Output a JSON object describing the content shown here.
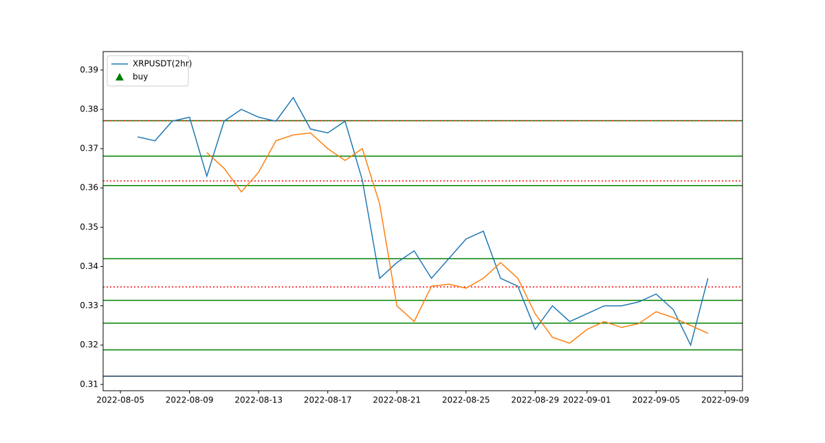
{
  "chart_data": {
    "type": "line",
    "x": [
      "2022-08-06",
      "2022-08-07",
      "2022-08-08",
      "2022-08-09",
      "2022-08-10",
      "2022-08-11",
      "2022-08-12",
      "2022-08-13",
      "2022-08-14",
      "2022-08-15",
      "2022-08-16",
      "2022-08-17",
      "2022-08-18",
      "2022-08-19",
      "2022-08-20",
      "2022-08-21",
      "2022-08-22",
      "2022-08-23",
      "2022-08-24",
      "2022-08-25",
      "2022-08-26",
      "2022-08-27",
      "2022-08-28",
      "2022-08-29",
      "2022-08-30",
      "2022-08-31",
      "2022-09-01",
      "2022-09-02",
      "2022-09-03",
      "2022-09-04",
      "2022-09-05",
      "2022-09-06",
      "2022-09-07",
      "2022-09-08"
    ],
    "series": [
      {
        "name": "XRPUSDT(2hr)",
        "color": "#1f77b4",
        "values": [
          0.373,
          0.372,
          0.377,
          0.378,
          0.363,
          0.377,
          0.38,
          0.378,
          0.377,
          0.383,
          0.375,
          0.374,
          0.377,
          0.362,
          0.337,
          0.341,
          0.344,
          0.337,
          0.342,
          0.347,
          0.349,
          0.337,
          0.335,
          0.324,
          0.33,
          0.326,
          0.328,
          0.33,
          0.33,
          0.331,
          0.333,
          0.329,
          0.32,
          0.337
        ]
      },
      {
        "color": "#ff7f0e",
        "values": [
          null,
          null,
          null,
          null,
          0.369,
          0.365,
          0.359,
          0.364,
          0.372,
          0.3735,
          0.374,
          0.37,
          0.367,
          0.37,
          0.356,
          0.33,
          0.326,
          0.335,
          0.3355,
          0.3345,
          0.337,
          0.341,
          0.337,
          0.328,
          0.322,
          0.3205,
          0.324,
          0.326,
          0.3245,
          0.3255,
          0.3285,
          0.327,
          0.325,
          0.323
        ]
      }
    ],
    "buy": {
      "name": "buy",
      "color": "#008000",
      "marker": "triangle",
      "points": []
    },
    "hlines": [
      {
        "y": 0.3771,
        "color": "#008000",
        "style": "solid"
      },
      {
        "y": 0.3771,
        "color": "#ff0000",
        "style": "dotted"
      },
      {
        "y": 0.3681,
        "color": "#008000",
        "style": "solid"
      },
      {
        "y": 0.3618,
        "color": "#ff0000",
        "style": "dotted"
      },
      {
        "y": 0.3606,
        "color": "#008000",
        "style": "solid"
      },
      {
        "y": 0.342,
        "color": "#008000",
        "style": "solid"
      },
      {
        "y": 0.3348,
        "color": "#ff0000",
        "style": "dotted"
      },
      {
        "y": 0.3314,
        "color": "#008000",
        "style": "solid"
      },
      {
        "y": 0.3256,
        "color": "#008000",
        "style": "solid"
      },
      {
        "y": 0.3188,
        "color": "#008000",
        "style": "solid"
      },
      {
        "y": 0.3121,
        "color": "#1f3b5a",
        "style": "solid"
      }
    ],
    "xlim": [
      "2022-08-04",
      "2022-09-10"
    ],
    "xticks": [
      "2022-08-05",
      "2022-08-09",
      "2022-08-13",
      "2022-08-17",
      "2022-08-21",
      "2022-08-25",
      "2022-08-29",
      "2022-09-01",
      "2022-09-05",
      "2022-09-09"
    ],
    "ylim": [
      0.3084,
      0.3947
    ],
    "yticks": [
      0.31,
      0.32,
      0.33,
      0.34,
      0.35,
      0.36,
      0.37,
      0.38,
      0.39
    ],
    "legend": "upper left",
    "grid": false
  }
}
